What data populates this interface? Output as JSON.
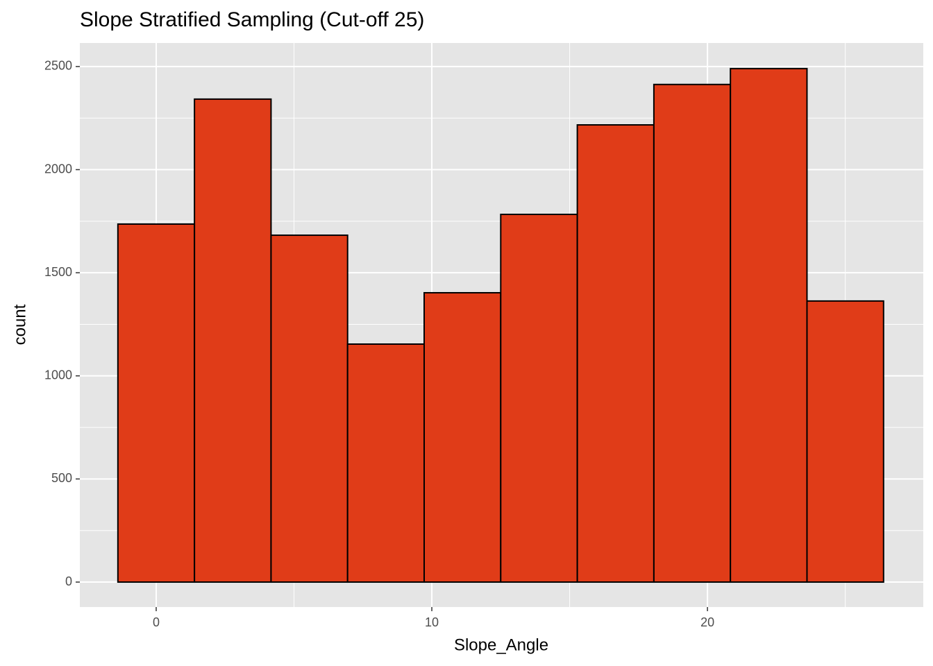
{
  "chart_data": {
    "type": "histogram",
    "title": "Slope Stratified Sampling (Cut-off 25)",
    "x_label": "Slope_Angle",
    "y_label": "count",
    "bins": [
      -1.389,
      1.389,
      4.167,
      6.944,
      9.722,
      12.5,
      15.278,
      18.056,
      20.833,
      23.611,
      26.389
    ],
    "values": [
      1736,
      2342,
      1682,
      1154,
      1403,
      1783,
      2217,
      2413,
      2490,
      1363
    ],
    "color": "#e03c18",
    "edgecolor": "#000000",
    "xlim": [
      -2.77,
      27.83
    ],
    "xticks": [
      0,
      10,
      20
    ],
    "ylim": [
      -121,
      2614
    ],
    "yticks": [
      0,
      500,
      1000,
      1500,
      2000,
      2500
    ],
    "grid": true
  }
}
